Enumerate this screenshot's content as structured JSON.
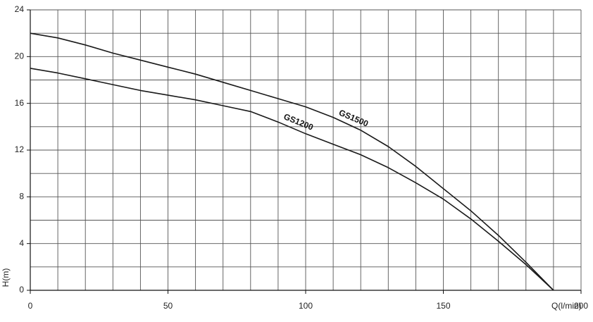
{
  "chart_data": {
    "type": "line",
    "title": "",
    "xlabel": "Q(l/min)",
    "ylabel": "H(m)",
    "xlim": [
      0,
      200
    ],
    "ylim": [
      0,
      24
    ],
    "x_ticks": [
      0,
      50,
      100,
      150,
      200
    ],
    "y_ticks": [
      0,
      4,
      8,
      12,
      16,
      20,
      24
    ],
    "grid": true,
    "series": [
      {
        "name": "GS1500",
        "x": [
          0,
          10,
          20,
          30,
          40,
          50,
          60,
          70,
          80,
          90,
          100,
          110,
          120,
          130,
          140,
          150,
          160,
          170,
          180,
          190
        ],
        "y": [
          22,
          21.6,
          21.0,
          20.3,
          19.7,
          19.1,
          18.5,
          17.8,
          17.1,
          16.4,
          15.7,
          14.8,
          13.7,
          12.3,
          10.6,
          8.7,
          6.8,
          4.7,
          2.4,
          0
        ]
      },
      {
        "name": "GS1200",
        "x": [
          0,
          10,
          20,
          30,
          40,
          50,
          60,
          70,
          80,
          90,
          100,
          110,
          120,
          130,
          140,
          150,
          160,
          170,
          180,
          190
        ],
        "y": [
          19,
          18.6,
          18.1,
          17.6,
          17.1,
          16.7,
          16.3,
          15.8,
          15.3,
          14.4,
          13.4,
          12.5,
          11.6,
          10.5,
          9.2,
          7.8,
          6.1,
          4.2,
          2.2,
          0
        ]
      }
    ]
  }
}
